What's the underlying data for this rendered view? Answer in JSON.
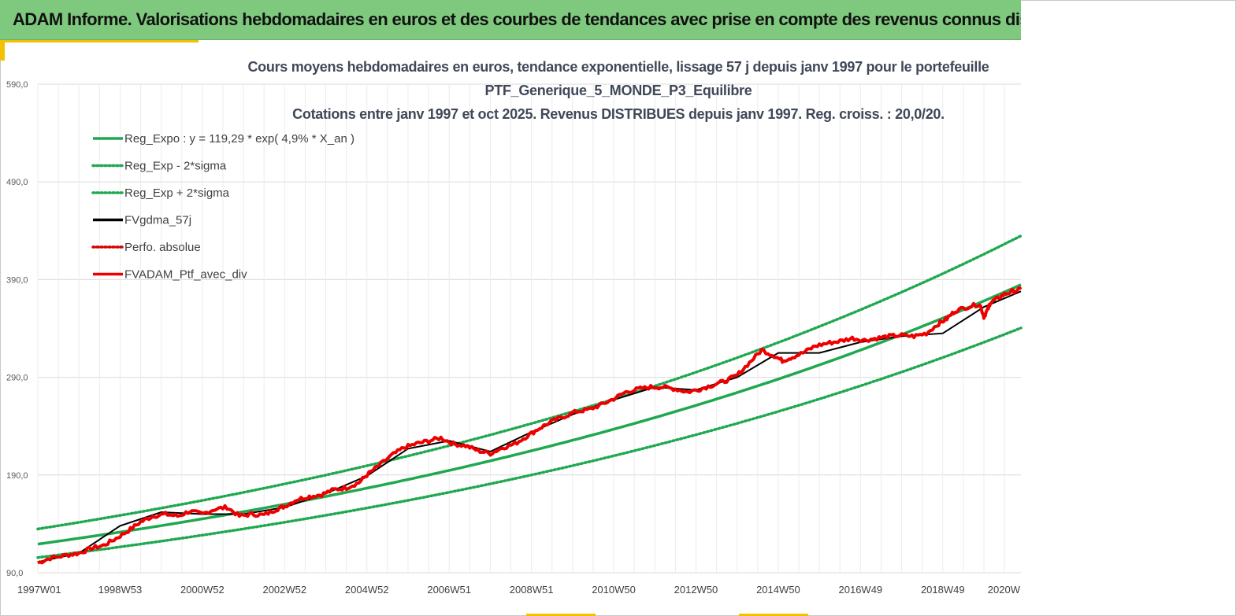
{
  "banner": {
    "text": "ADAM Informe. Valorisations hebdomadaires en euros et des courbes de tendances avec prise en compte des revenus connus distribués"
  },
  "chart_data": {
    "type": "line",
    "title_lines": [
      "Cours moyens hebdomadaires  en euros,  tendance exponentielle, lissage 57 j depuis janv 1997 pour le portefeuille",
      "PTF_Generique_5_MONDE_P3_Equilibre",
      "Cotations entre janv 1997 et oct 2025. Revenus DISTRIBUES depuis janv 1997. Reg. croiss. : 20,0/20."
    ],
    "ylim": [
      90,
      590
    ],
    "xlim": [
      1997.0,
      2020.9
    ],
    "y_ticks": [
      "590,0",
      "490,0",
      "390,0",
      "290,0",
      "190,0",
      "90,0"
    ],
    "x_ticks": [
      {
        "label": "1997W01",
        "t": 1997.0
      },
      {
        "label": "1998W53",
        "t": 1999.0
      },
      {
        "label": "2000W52",
        "t": 2001.0
      },
      {
        "label": "2002W52",
        "t": 2003.0
      },
      {
        "label": "2004W52",
        "t": 2005.0
      },
      {
        "label": "2006W51",
        "t": 2007.0
      },
      {
        "label": "2008W51",
        "t": 2009.0
      },
      {
        "label": "2010W50",
        "t": 2011.0
      },
      {
        "label": "2012W50",
        "t": 2013.0
      },
      {
        "label": "2014W50",
        "t": 2015.0
      },
      {
        "label": "2016W49",
        "t": 2017.0
      },
      {
        "label": "2018W49",
        "t": 2019.0
      },
      {
        "label": "2020W",
        "t": 2020.9
      }
    ],
    "regression": {
      "a": 119.29,
      "rate": 0.049,
      "upper_factor": 1.13,
      "lower_factor": 0.885
    },
    "colors": {
      "reg": "#1fa84f",
      "fv57": "#000000",
      "perf": "#d00000",
      "ptf": "#ee0000"
    },
    "legend": [
      {
        "label": "Reg_Expo : y = 119,29 * exp( 4,9% *  X_an )",
        "style": "solid",
        "color": "#1fa84f"
      },
      {
        "label": "Reg_Exp - 2*sigma",
        "style": "dotted",
        "color": "#1fa84f"
      },
      {
        "label": "Reg_Exp + 2*sigma",
        "style": "dotted",
        "color": "#1fa84f"
      },
      {
        "label": "FVgdma_57j",
        "style": "solid",
        "color": "#000000"
      },
      {
        "label": "Perfo. absolue",
        "style": "dotted",
        "color": "#d00000"
      },
      {
        "label": "FVADAM_Ptf_avec_div",
        "style": "solid",
        "color": "#ee0000"
      }
    ],
    "series_ptf": {
      "name": "FVADAM_Ptf_avec_div",
      "t": [
        1997.0,
        1997.3,
        1997.7,
        1998.0,
        1998.3,
        1998.6,
        1998.9,
        1999.2,
        1999.5,
        1999.8,
        2000.1,
        2000.4,
        2000.7,
        2001.0,
        2001.3,
        2001.6,
        2001.9,
        2002.2,
        2002.5,
        2002.8,
        2003.0,
        2003.3,
        2003.6,
        2003.9,
        2004.2,
        2004.5,
        2004.8,
        2005.0,
        2005.3,
        2005.6,
        2005.9,
        2006.2,
        2006.5,
        2006.8,
        2007.1,
        2007.4,
        2007.7,
        2008.0,
        2008.3,
        2008.6,
        2008.9,
        2009.2,
        2009.5,
        2009.8,
        2010.1,
        2010.4,
        2010.7,
        2011.0,
        2011.3,
        2011.6,
        2011.9,
        2012.2,
        2012.5,
        2012.8,
        2013.1,
        2013.4,
        2013.7,
        2014.0,
        2014.3,
        2014.6,
        2014.9,
        2015.1,
        2015.3,
        2015.6,
        2015.9,
        2016.2,
        2016.5,
        2016.8,
        2017.1,
        2017.4,
        2017.7,
        2018.0,
        2018.3,
        2018.6,
        2018.9,
        2019.1,
        2019.3,
        2019.6,
        2019.9,
        2020.0,
        2020.1,
        2020.15,
        2020.3,
        2020.5,
        2020.7,
        2020.9
      ],
      "v": [
        100,
        105,
        108,
        110,
        115,
        118,
        125,
        133,
        142,
        148,
        150,
        148,
        153,
        150,
        155,
        157,
        148,
        150,
        149,
        155,
        158,
        165,
        168,
        170,
        175,
        177,
        182,
        190,
        200,
        210,
        218,
        222,
        225,
        228,
        222,
        220,
        215,
        212,
        218,
        222,
        230,
        238,
        245,
        250,
        255,
        257,
        262,
        268,
        275,
        278,
        280,
        280,
        278,
        275,
        278,
        282,
        286,
        292,
        305,
        318,
        312,
        307,
        310,
        315,
        322,
        325,
        327,
        330,
        328,
        330,
        332,
        333,
        332,
        335,
        345,
        350,
        358,
        362,
        365,
        352,
        360,
        366,
        370,
        375,
        378,
        380
      ]
    },
    "series_fv57": {
      "name": "FVgdma_57j",
      "t": [
        1997.0,
        1998.0,
        1999.0,
        2000.0,
        2001.0,
        2002.0,
        2003.0,
        2004.0,
        2005.0,
        2006.0,
        2007.0,
        2008.0,
        2009.0,
        2010.0,
        2011.0,
        2012.0,
        2013.0,
        2014.0,
        2015.0,
        2016.0,
        2017.0,
        2018.0,
        2019.0,
        2020.0,
        2020.9
      ],
      "v": [
        101,
        110,
        138,
        152,
        150,
        150,
        157,
        171,
        189,
        217,
        225,
        214,
        234,
        252,
        267,
        280,
        277,
        290,
        315,
        315,
        326,
        332,
        335,
        362,
        378
      ]
    }
  }
}
